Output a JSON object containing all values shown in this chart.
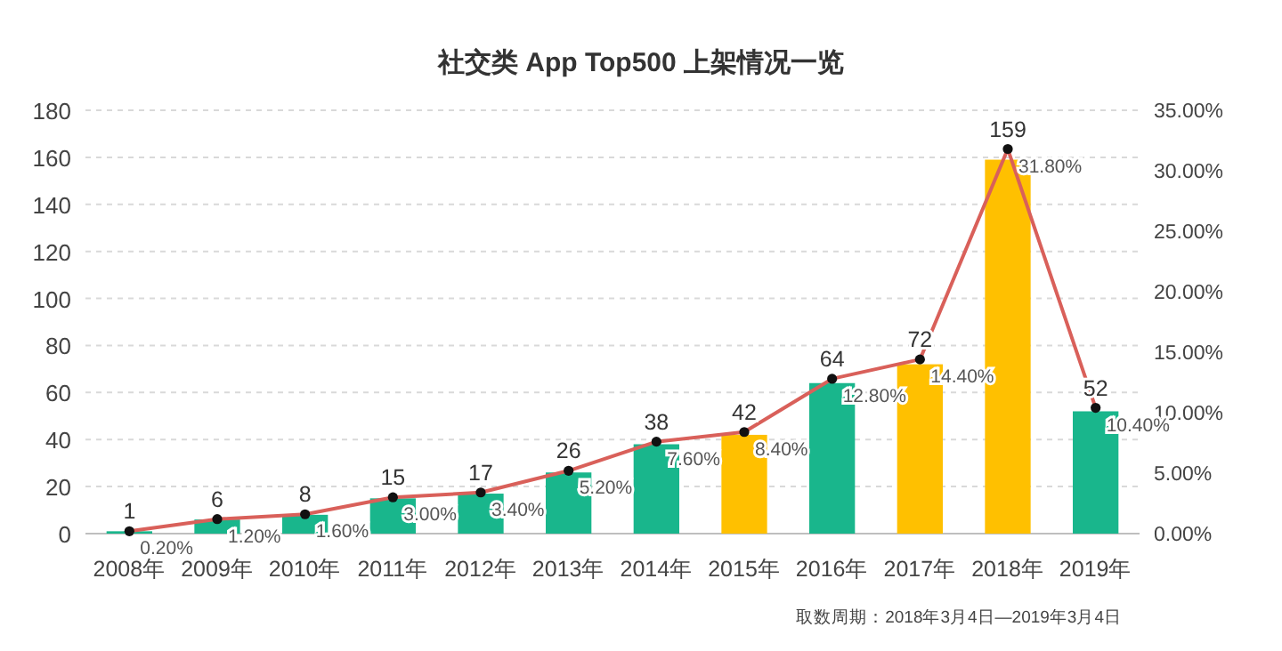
{
  "chart_data": {
    "type": "bar",
    "title": "社交类 App Top500 上架情况一览",
    "categories": [
      "2008年",
      "2009年",
      "2010年",
      "2011年",
      "2012年",
      "2013年",
      "2014年",
      "2015年",
      "2016年",
      "2017年",
      "2018年",
      "2019年"
    ],
    "series": [
      {
        "values": [
          1,
          6,
          8,
          15,
          17,
          26,
          38,
          42,
          64,
          72,
          159,
          52
        ],
        "colors": [
          "#19b68c",
          "#19b68c",
          "#19b68c",
          "#19b68c",
          "#19b68c",
          "#19b68c",
          "#19b68c",
          "#ffc000",
          "#19b68c",
          "#ffc000",
          "#ffc000",
          "#19b68c"
        ]
      },
      {
        "type": "line",
        "axis": "y2",
        "color": "#d9605a",
        "marker": "circle",
        "values": [
          0.2,
          1.2,
          1.6,
          3.0,
          3.4,
          5.2,
          7.6,
          8.4,
          12.8,
          14.4,
          31.8,
          10.4
        ],
        "value_labels": [
          "0.20%",
          "1.20%",
          "1.60%",
          "3.00%",
          "3.40%",
          "5.20%",
          "7.60%",
          "8.40%",
          "12.80%",
          "14.40%",
          "31.80%",
          "10.40%"
        ]
      }
    ],
    "data_labels": true,
    "ylim": [
      0,
      180
    ],
    "yticks": [
      0,
      20,
      40,
      60,
      80,
      100,
      120,
      140,
      160,
      180
    ],
    "y2lim": [
      0,
      35
    ],
    "y2ticks": [
      {
        "value": 0,
        "label": "0.00%"
      },
      {
        "value": 5,
        "label": "5.00%"
      },
      {
        "value": 10,
        "label": "10.00%"
      },
      {
        "value": 15,
        "label": "15.00%"
      },
      {
        "value": 20,
        "label": "20.00%"
      },
      {
        "value": 25,
        "label": "25.00%"
      },
      {
        "value": 30,
        "label": "30.00%"
      },
      {
        "value": 35,
        "label": "35.00%"
      }
    ],
    "grid": "y",
    "annotations": [
      "取数周期：2018年3月4日—2019年3月4日"
    ]
  }
}
